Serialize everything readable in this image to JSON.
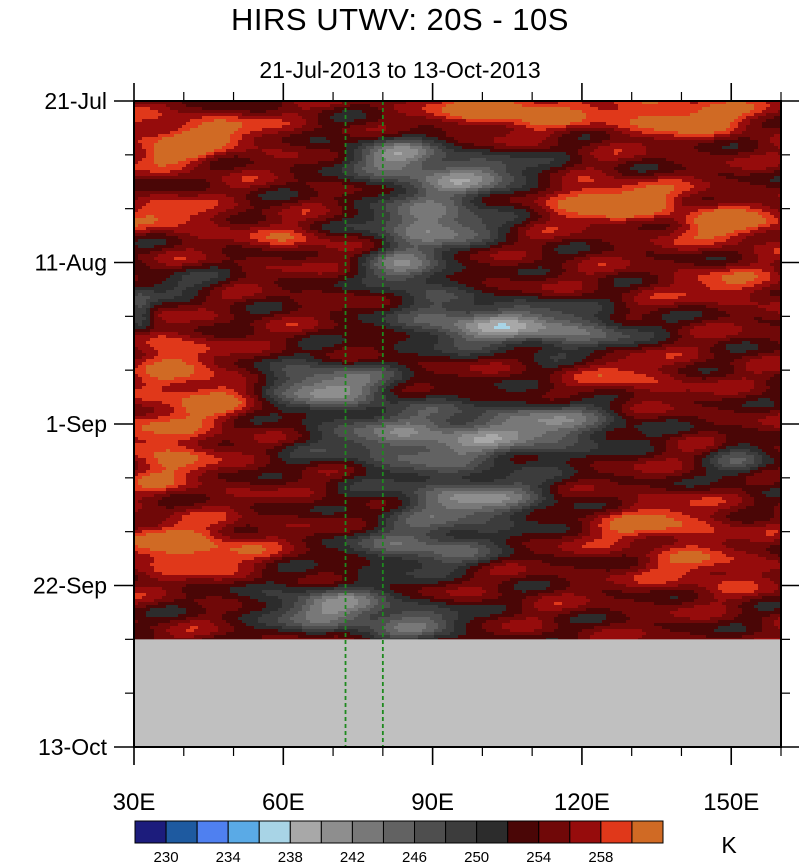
{
  "chart_data": {
    "type": "heatmap",
    "title": "HIRS UTWV: 20S - 10S",
    "subtitle": "21-Jul-2013 to 13-Oct-2013",
    "x": {
      "range": [
        30,
        160
      ],
      "ticks": [
        {
          "value": 30,
          "label": "30E"
        },
        {
          "value": 60,
          "label": "60E"
        },
        {
          "value": 90,
          "label": "90E"
        },
        {
          "value": 120,
          "label": "120E"
        },
        {
          "value": 150,
          "label": "150E"
        }
      ],
      "minor_step": 10
    },
    "y": {
      "range_days": [
        0,
        84
      ],
      "ticks": [
        {
          "day": 0,
          "label": "21-Jul"
        },
        {
          "day": 21,
          "label": "11-Aug"
        },
        {
          "day": 42,
          "label": "1-Sep"
        },
        {
          "day": 63,
          "label": "22-Sep"
        },
        {
          "day": 84,
          "label": "13-Oct"
        }
      ],
      "minor_step_days": 7
    },
    "data_end_day": 70,
    "missing_color": "#c0c0c0",
    "reference_lines_x": [
      72.5,
      80
    ],
    "reference_line_color": "#1e8a1e",
    "colorbar": {
      "unit": "K",
      "levels": [
        228,
        230,
        232,
        234,
        236,
        238,
        240,
        242,
        244,
        246,
        248,
        250,
        252,
        254,
        256,
        258,
        260
      ],
      "labeled": [
        230,
        234,
        238,
        242,
        246,
        250,
        254,
        258
      ],
      "colors": [
        "#1c1c7c",
        "#1e5aa0",
        "#4f80f0",
        "#5aaae6",
        "#a8d4e6",
        "#a8a8a8",
        "#8e8e8e",
        "#787878",
        "#626262",
        "#4e4e4e",
        "#3c3c3c",
        "#2c2c2c",
        "#4a0606",
        "#700808",
        "#960c0c",
        "#e0381a",
        "#d06a24"
      ]
    },
    "field": {
      "warm_features": [
        {
          "lon": 105,
          "day": 1,
          "rlon": 14,
          "rday": 2.5,
          "amp": 9
        },
        {
          "lon": 140,
          "day": 2,
          "rlon": 16,
          "rday": 2.5,
          "amp": 8
        },
        {
          "lon": 43,
          "day": 4,
          "rlon": 14,
          "rday": 2.2,
          "amp": 7
        },
        {
          "lon": 38,
          "day": 7,
          "rlon": 10,
          "rday": 2,
          "amp": 6
        },
        {
          "lon": 125,
          "day": 13,
          "rlon": 14,
          "rday": 2.5,
          "amp": 10
        },
        {
          "lon": 150,
          "day": 16,
          "rlon": 10,
          "rday": 2.5,
          "amp": 8
        },
        {
          "lon": 38,
          "day": 15,
          "rlon": 10,
          "rday": 2,
          "amp": 6
        },
        {
          "lon": 62,
          "day": 18,
          "rlon": 8,
          "rday": 1.5,
          "amp": 5
        },
        {
          "lon": 150,
          "day": 24,
          "rlon": 12,
          "rday": 2,
          "amp": 5
        },
        {
          "lon": 34,
          "day": 32,
          "rlon": 8,
          "rday": 3,
          "amp": 6
        },
        {
          "lon": 45,
          "day": 38,
          "rlon": 12,
          "rday": 4,
          "amp": 7
        },
        {
          "lon": 36,
          "day": 46,
          "rlon": 10,
          "rday": 5,
          "amp": 6
        },
        {
          "lon": 40,
          "day": 58,
          "rlon": 14,
          "rday": 3,
          "amp": 8
        },
        {
          "lon": 135,
          "day": 55,
          "rlon": 14,
          "rday": 3,
          "amp": 6
        },
        {
          "lon": 145,
          "day": 61,
          "rlon": 12,
          "rday": 2.5,
          "amp": 5
        },
        {
          "lon": 130,
          "day": 36,
          "rlon": 10,
          "rday": 3,
          "amp": 4
        }
      ],
      "dry_features": [
        {
          "lon": 82,
          "day": 7,
          "rlon": 10,
          "rday": 2.5,
          "amp": 10
        },
        {
          "lon": 96,
          "day": 10,
          "rlon": 16,
          "rday": 3,
          "amp": 11
        },
        {
          "lon": 90,
          "day": 16,
          "rlon": 12,
          "rday": 3,
          "amp": 13
        },
        {
          "lon": 85,
          "day": 22,
          "rlon": 8,
          "rday": 3,
          "amp": 11
        },
        {
          "lon": 100,
          "day": 29,
          "rlon": 16,
          "rday": 3,
          "amp": 13
        },
        {
          "lon": 120,
          "day": 30,
          "rlon": 12,
          "rday": 2.5,
          "amp": 8
        },
        {
          "lon": 68,
          "day": 37,
          "rlon": 14,
          "rday": 3,
          "amp": 13
        },
        {
          "lon": 90,
          "day": 44,
          "rlon": 22,
          "rday": 4,
          "amp": 12
        },
        {
          "lon": 115,
          "day": 42,
          "rlon": 14,
          "rday": 3,
          "amp": 9
        },
        {
          "lon": 98,
          "day": 52,
          "rlon": 16,
          "rday": 3,
          "amp": 12
        },
        {
          "lon": 88,
          "day": 58,
          "rlon": 14,
          "rday": 3,
          "amp": 10
        },
        {
          "lon": 70,
          "day": 66,
          "rlon": 14,
          "rday": 3,
          "amp": 12
        },
        {
          "lon": 88,
          "day": 68,
          "rlon": 10,
          "rday": 2,
          "amp": 8
        },
        {
          "lon": 31,
          "day": 28,
          "rlon": 3,
          "rday": 3,
          "amp": 8
        },
        {
          "lon": 152,
          "day": 47,
          "rlon": 6,
          "rday": 3,
          "amp": 6
        },
        {
          "lon": 38,
          "day": 24,
          "rlon": 10,
          "rday": 2,
          "amp": 4
        }
      ]
    }
  }
}
